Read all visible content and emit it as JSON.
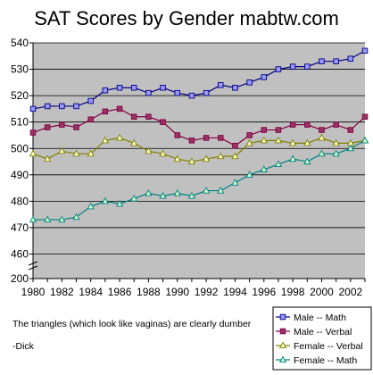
{
  "chart_data": {
    "type": "line",
    "title": "SAT Scores by Gender  mabtw.com",
    "xlabel": "",
    "ylabel": "",
    "x": [
      1980,
      1981,
      1982,
      1983,
      1984,
      1985,
      1986,
      1987,
      1988,
      1989,
      1990,
      1991,
      1992,
      1993,
      1994,
      1995,
      1996,
      1997,
      1998,
      1999,
      2000,
      2001,
      2002,
      2003
    ],
    "x_tick_labels": [
      "1980",
      "1982",
      "1984",
      "1986",
      "1988",
      "1990",
      "1992",
      "1994",
      "1996",
      "1998",
      "2000",
      "2002"
    ],
    "y_tick_labels": [
      "200",
      "460",
      "470",
      "480",
      "490",
      "500",
      "510",
      "520",
      "530",
      "540"
    ],
    "y_axis_break": true,
    "ylim": [
      460,
      540
    ],
    "grid": true,
    "legend_position": "bottom-right",
    "series": [
      {
        "name": "Male -- Math",
        "marker": "square",
        "fill": "#9999ff",
        "line": "#000080",
        "values": [
          515,
          516,
          516,
          516,
          518,
          522,
          523,
          523,
          521,
          523,
          521,
          520,
          521,
          524,
          523,
          525,
          527,
          530,
          531,
          531,
          533,
          533,
          534,
          537
        ]
      },
      {
        "name": "Male -- Verbal",
        "marker": "square",
        "fill": "#993366",
        "line": "#800040",
        "values": [
          506,
          508,
          509,
          508,
          511,
          514,
          515,
          512,
          512,
          510,
          505,
          503,
          504,
          504,
          501,
          505,
          507,
          507,
          509,
          509,
          507,
          509,
          507,
          512
        ]
      },
      {
        "name": "Female -- Verbal",
        "marker": "triangle",
        "fill": "#ffffcc",
        "line": "#808000",
        "values": [
          498,
          496,
          499,
          498,
          498,
          503,
          504,
          502,
          499,
          498,
          496,
          495,
          496,
          497,
          497,
          502,
          503,
          503,
          502,
          502,
          504,
          502,
          502,
          503
        ]
      },
      {
        "name": "Female -- Math",
        "marker": "triangle",
        "fill": "#ccffcc",
        "line": "#008080",
        "values": [
          473,
          473,
          473,
          474,
          478,
          480,
          479,
          481,
          483,
          482,
          483,
          482,
          484,
          484,
          487,
          490,
          492,
          494,
          496,
          495,
          498,
          498,
          500,
          503
        ]
      }
    ]
  },
  "annotation": {
    "line1": "The triangles (which look like vaginas) are clearly dumber",
    "line2": "-Dick"
  }
}
